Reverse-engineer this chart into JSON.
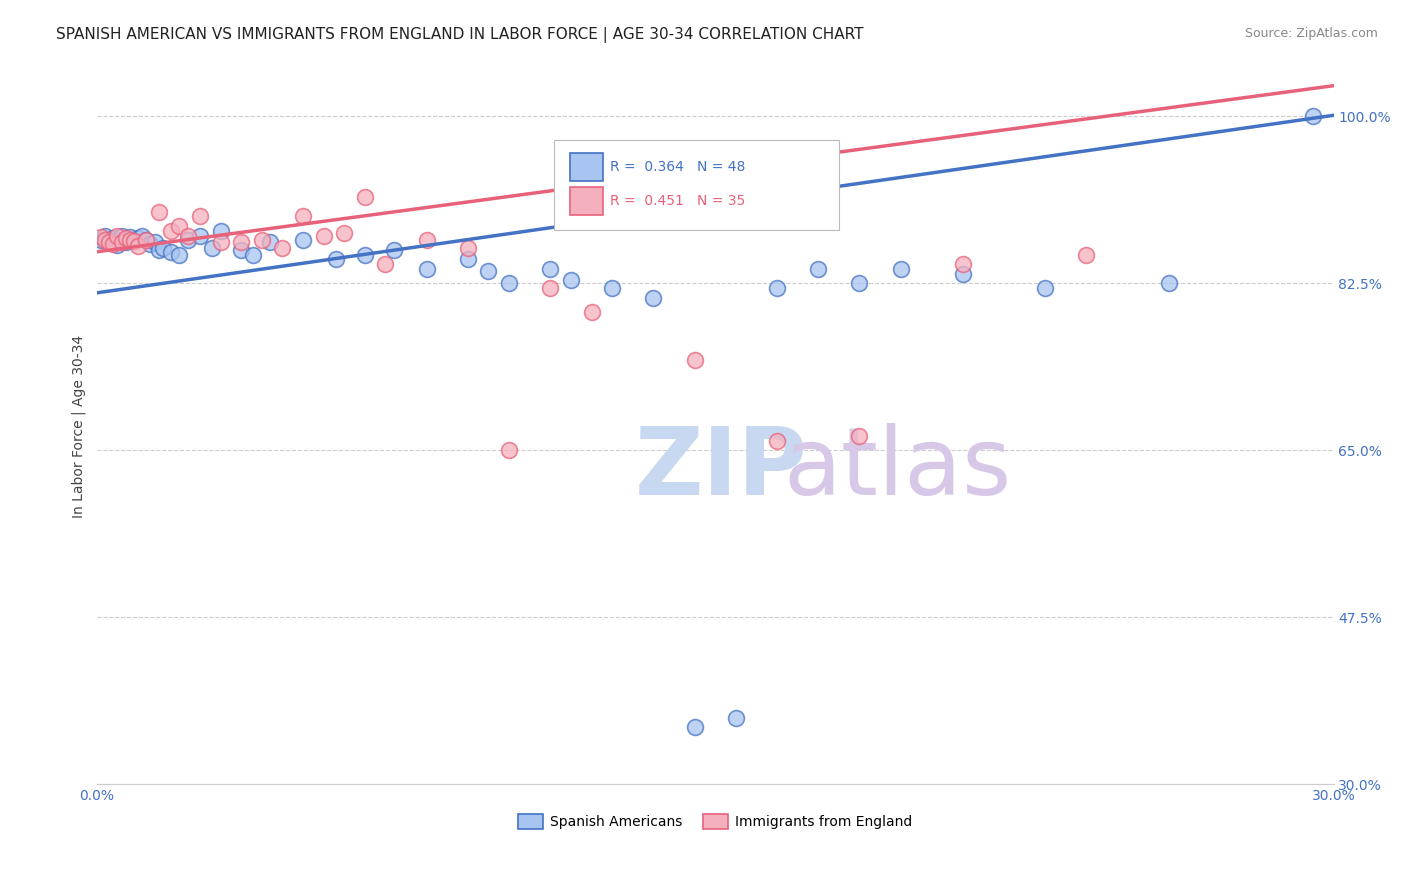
{
  "title": "SPANISH AMERICAN VS IMMIGRANTS FROM ENGLAND IN LABOR FORCE | AGE 30-34 CORRELATION CHART",
  "source": "Source: ZipAtlas.com",
  "ylabel": "In Labor Force | Age 30-34",
  "xlim": [
    0.0,
    0.3
  ],
  "ylim": [
    0.3,
    1.05
  ],
  "xticks": [
    0.0,
    0.05,
    0.1,
    0.15,
    0.2,
    0.25,
    0.3
  ],
  "xticklabels": [
    "0.0%",
    "",
    "",
    "",
    "",
    "",
    "30.0%"
  ],
  "ytick_positions": [
    0.3,
    0.475,
    0.65,
    0.825,
    1.0
  ],
  "yticklabels": [
    "30.0%",
    "47.5%",
    "65.0%",
    "82.5%",
    "100.0%"
  ],
  "legend_blue_r": "R = 0.364",
  "legend_blue_n": "N = 48",
  "legend_pink_r": "R = 0.451",
  "legend_pink_n": "N = 35",
  "blue_scatter_x": [
    0.001,
    0.002,
    0.003,
    0.004,
    0.005,
    0.005,
    0.006,
    0.007,
    0.008,
    0.009,
    0.01,
    0.011,
    0.012,
    0.013,
    0.014,
    0.015,
    0.016,
    0.018,
    0.02,
    0.022,
    0.025,
    0.028,
    0.03,
    0.035,
    0.038,
    0.042,
    0.05,
    0.058,
    0.065,
    0.072,
    0.08,
    0.09,
    0.095,
    0.1,
    0.11,
    0.115,
    0.125,
    0.135,
    0.145,
    0.155,
    0.165,
    0.175,
    0.185,
    0.195,
    0.21,
    0.23,
    0.26,
    0.295
  ],
  "blue_scatter_y": [
    0.87,
    0.875,
    0.868,
    0.872,
    0.87,
    0.865,
    0.875,
    0.868,
    0.873,
    0.869,
    0.872,
    0.875,
    0.87,
    0.866,
    0.868,
    0.86,
    0.862,
    0.858,
    0.855,
    0.87,
    0.875,
    0.862,
    0.88,
    0.86,
    0.855,
    0.868,
    0.87,
    0.85,
    0.855,
    0.86,
    0.84,
    0.85,
    0.838,
    0.825,
    0.84,
    0.828,
    0.82,
    0.81,
    0.36,
    0.37,
    0.82,
    0.84,
    0.825,
    0.84,
    0.835,
    0.82,
    0.825,
    1.0
  ],
  "pink_scatter_x": [
    0.001,
    0.002,
    0.003,
    0.004,
    0.005,
    0.006,
    0.007,
    0.008,
    0.009,
    0.01,
    0.012,
    0.015,
    0.018,
    0.02,
    0.022,
    0.025,
    0.03,
    0.035,
    0.04,
    0.045,
    0.05,
    0.055,
    0.06,
    0.065,
    0.07,
    0.08,
    0.09,
    0.1,
    0.11,
    0.12,
    0.145,
    0.165,
    0.185,
    0.21,
    0.24
  ],
  "pink_scatter_y": [
    0.873,
    0.87,
    0.868,
    0.866,
    0.875,
    0.868,
    0.872,
    0.87,
    0.869,
    0.864,
    0.87,
    0.9,
    0.88,
    0.885,
    0.875,
    0.895,
    0.868,
    0.868,
    0.87,
    0.862,
    0.895,
    0.875,
    0.878,
    0.915,
    0.845,
    0.87,
    0.862,
    0.65,
    0.82,
    0.795,
    0.745,
    0.66,
    0.665,
    0.845,
    0.855
  ],
  "blue_line_color": "#4472C4",
  "pink_line_color": "#E8617A",
  "blue_scatter_facecolor": "#A8C4F0",
  "pink_scatter_facecolor": "#F5B0BE",
  "grid_color": "#CCCCCC",
  "background_color": "#FFFFFF",
  "title_fontsize": 11,
  "axis_label_fontsize": 10,
  "tick_fontsize": 10,
  "source_fontsize": 9,
  "blue_trend_intercept": 0.815,
  "blue_trend_slope": 0.62,
  "pink_trend_intercept": 0.858,
  "pink_trend_slope": 0.58
}
